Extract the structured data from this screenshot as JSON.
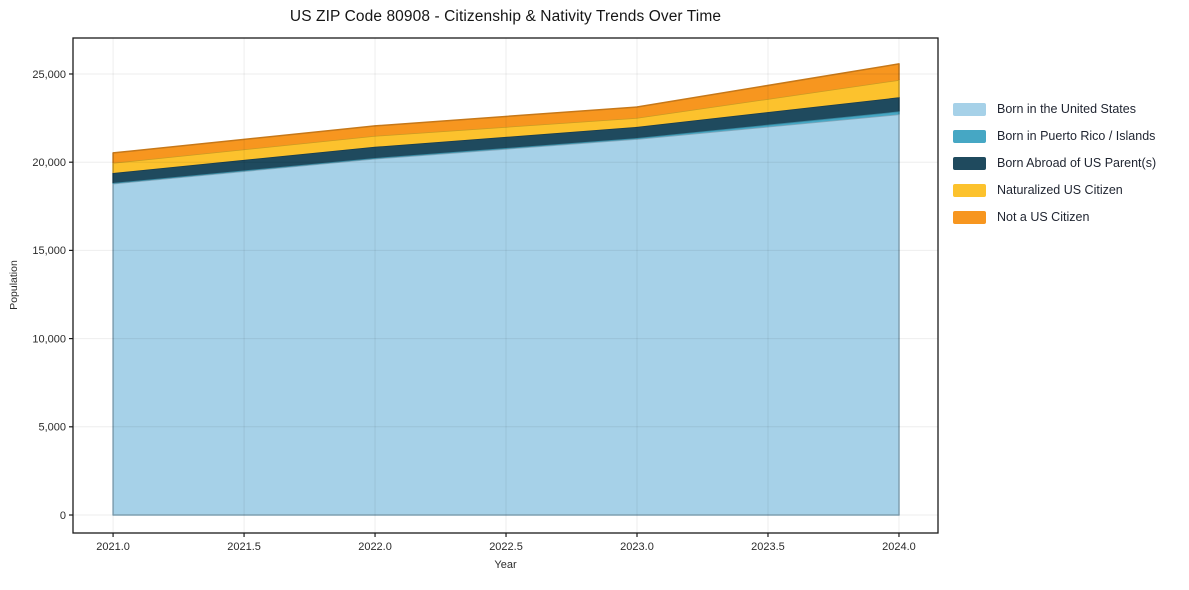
{
  "title": "US ZIP Code 80908 - Citizenship & Nativity Trends Over Time",
  "chart_data": {
    "type": "area",
    "stacked": true,
    "title": "US ZIP Code 80908 - Citizenship & Nativity Trends Over Time",
    "xlabel": "Year",
    "ylabel": "Population",
    "x": [
      2021.0,
      2022.0,
      2023.0,
      2024.0
    ],
    "series": [
      {
        "name": "Born in the United States",
        "color": "#a6d1e8",
        "values": [
          18780,
          20190,
          21310,
          22710
        ]
      },
      {
        "name": "Born in Puerto Rico / Islands",
        "color": "#46a7c4",
        "values": [
          45,
          50,
          60,
          170
        ]
      },
      {
        "name": "Born Abroad of US Parent(s)",
        "color": "#1f4a5e",
        "values": [
          565,
          630,
          630,
          800
        ]
      },
      {
        "name": "Naturalized US Citizen",
        "color": "#fcc22d",
        "values": [
          570,
          620,
          510,
          980
        ]
      },
      {
        "name": "Not a US Citizen",
        "color": "#f7961f",
        "values": [
          565,
          570,
          620,
          910
        ]
      }
    ],
    "stack_totals": [
      20525,
      22060,
      23130,
      25570
    ],
    "xticks": [
      2021.0,
      2021.5,
      2022.0,
      2022.5,
      2023.0,
      2023.5,
      2024.0
    ],
    "yticks": [
      0,
      5000,
      10000,
      15000,
      20000,
      25000
    ],
    "xlim": [
      2020.847,
      2024.149
    ],
    "ylim": [
      -1020,
      27040
    ],
    "grid": true,
    "legend_position": "right-outside",
    "background_color": "#ffffff",
    "spine_color": "#1a1a1a",
    "grid_color": "rgba(0,0,0,0.07)",
    "tick_label_color": "#2b2b2b"
  }
}
